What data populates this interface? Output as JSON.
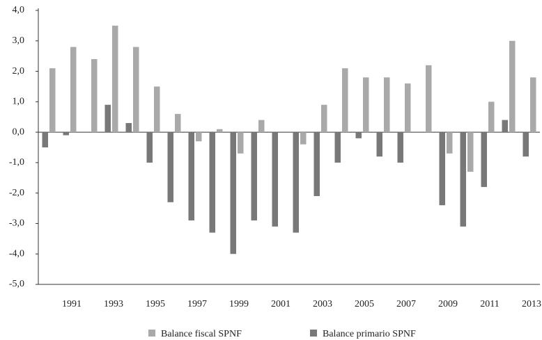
{
  "chart_data": {
    "type": "bar",
    "categories": [
      null,
      "1991",
      null,
      "1993",
      null,
      "1995",
      null,
      "1997",
      null,
      "1999",
      null,
      "2001",
      null,
      "2003",
      null,
      "2005",
      null,
      "2007",
      null,
      "2009",
      null,
      "2011",
      null,
      "2013"
    ],
    "series": [
      {
        "name": "Balance fiscal SPNF",
        "color": "#a9a9a9",
        "values": [
          2.1,
          2.8,
          2.4,
          3.5,
          2.8,
          1.5,
          0.6,
          -0.3,
          0.1,
          -0.7,
          0.4,
          0,
          -0.4,
          0.9,
          2.1,
          1.8,
          1.8,
          1.6,
          2.2,
          -0.7,
          -1.3,
          1.0,
          3.0,
          1.8
        ]
      },
      {
        "name": "Balance primario SPNF",
        "color": "#787878",
        "values": [
          -0.5,
          -0.1,
          0,
          0.9,
          0.3,
          -1.0,
          -2.3,
          -2.9,
          -3.3,
          -4.0,
          -2.9,
          -3.1,
          -3.3,
          -2.1,
          -1.0,
          -0.2,
          -0.8,
          -1.0,
          0,
          -2.4,
          -3.1,
          -1.8,
          0.4,
          -0.8
        ]
      }
    ],
    "ylim": [
      -5,
      4
    ],
    "yticks": [
      {
        "value": -5,
        "label": "-5,0"
      },
      {
        "value": -4,
        "label": "-4,0"
      },
      {
        "value": -3,
        "label": "-3,0"
      },
      {
        "value": -2,
        "label": "-2,0"
      },
      {
        "value": -1,
        "label": "-1,0"
      },
      {
        "value": 0,
        "label": "0,0"
      },
      {
        "value": 1,
        "label": "1,0"
      },
      {
        "value": 2,
        "label": "2,0"
      },
      {
        "value": 3,
        "label": "3,0"
      },
      {
        "value": 4,
        "label": "4,0"
      }
    ],
    "grid": false,
    "legend": "bottom"
  }
}
